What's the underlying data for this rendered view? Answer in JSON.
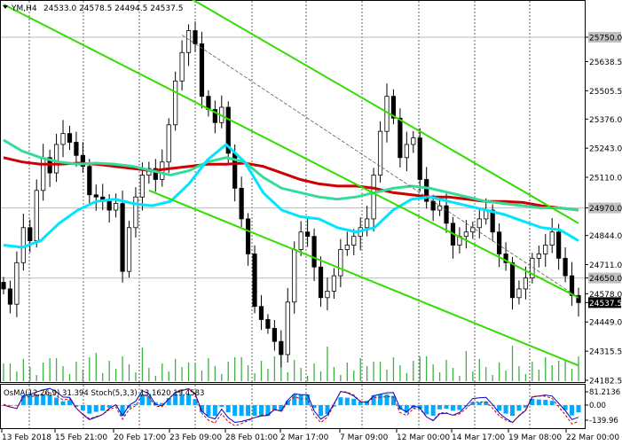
{
  "header": {
    "symbol": "YM,H4",
    "ohlc": "24533.0 24578.5 24494.5 24537.5"
  },
  "oscillator_header": "OsMA(12,26,9) 31.394  Stoch(5,3,3) 13.1620 19.4583",
  "chart_data": {
    "type": "candlestick",
    "title": "YM,H4",
    "y_ticks": [
      25750.0,
      25638.5,
      25505.5,
      25376.0,
      25243.0,
      25110.0,
      24970.0,
      24844.0,
      24711.0,
      24650.0,
      24578.0,
      24537.5,
      24449.0,
      24315.5,
      24182.5
    ],
    "highlighted_levels": [
      {
        "value": 25750.0,
        "label": "25750.0",
        "color": "#c0c0c0"
      },
      {
        "value": 24970.0,
        "label": "24970.0",
        "color": "#c0c0c0"
      },
      {
        "value": 24650.0,
        "label": "24650.0",
        "color": "#c0c0c0"
      },
      {
        "value": 24537.5,
        "label": "24537.5",
        "color": "#000000"
      }
    ],
    "x_labels": [
      "13 Feb 2018",
      "15 Feb 21:00",
      "20 Feb 17:00",
      "23 Feb 09:00",
      "28 Feb 01:00",
      "2 Mar 17:00",
      "7 Mar 09:00",
      "12 Mar 00:00",
      "14 Mar 17:00",
      "19 Mar 08:00",
      "22 Mar 00:00"
    ],
    "close_series": [
      24600,
      24530,
      24720,
      24880,
      24820,
      25050,
      25200,
      25130,
      25260,
      25310,
      25270,
      25210,
      25160,
      25030,
      25020,
      25000,
      24960,
      24990,
      24680,
      24880,
      25020,
      25120,
      25150,
      25100,
      25180,
      25350,
      25550,
      25680,
      25780,
      25720,
      25480,
      25420,
      25360,
      25430,
      25220,
      25060,
      24920,
      24760,
      24520,
      24460,
      24420,
      24360,
      24300,
      24540,
      24780,
      24860,
      24840,
      24700,
      24560,
      24590,
      24660,
      24780,
      24800,
      24840,
      24880,
      24920,
      25120,
      25320,
      25480,
      25380,
      25200,
      25260,
      25290,
      25100,
      25000,
      24960,
      24980,
      24900,
      24800,
      24840,
      24860,
      24880,
      24920,
      24960,
      24860,
      24760,
      24720,
      24560,
      24600,
      24650,
      24740,
      24760,
      24800,
      24860,
      24740,
      24660,
      24570,
      24537.5
    ],
    "series": [
      {
        "name": "",
        "color": "#cc0000",
        "values": [
          25200,
          25180,
          25170,
          25170,
          25175,
          25170,
          25160,
          25150,
          25140,
          25150,
          25160,
          25170,
          25170,
          25175,
          25160,
          25130,
          25100,
          25080,
          25070,
          25070,
          25060,
          25040,
          25030,
          25020,
          25020,
          25010,
          25000,
          25000,
          24995,
          24980,
          24970,
          24960
        ]
      },
      {
        "name": "",
        "color": "#33dd99",
        "values": [
          25280,
          25230,
          25200,
          25180,
          25170,
          25175,
          25170,
          25160,
          25140,
          25120,
          25140,
          25180,
          25200,
          25180,
          25110,
          25060,
          25040,
          25020,
          25010,
          25020,
          25040,
          25060,
          25070,
          25060,
          25040,
          25020,
          25000,
          24990,
          24980,
          24970,
          24970,
          24960
        ]
      },
      {
        "name": "",
        "color": "#00e5ff",
        "values": [
          24800,
          24790,
          24820,
          24900,
          24960,
          25000,
          25010,
          24990,
          24980,
          25000,
          25080,
          25190,
          25260,
          25180,
          25040,
          24960,
          24930,
          24920,
          24880,
          24860,
          24880,
          24960,
          25010,
          25020,
          25000,
          24980,
          24960,
          24940,
          24910,
          24880,
          24870,
          24820
        ]
      }
    ],
    "channel_lines": [
      {
        "color": "#33dd00",
        "from": [
          0,
          25900
        ],
        "to": [
          87,
          24560
        ]
      },
      {
        "color": "#33dd00",
        "from": [
          27,
          25950
        ],
        "to": [
          87,
          24900
        ]
      },
      {
        "color": "#33dd00",
        "from": [
          22,
          25050
        ],
        "to": [
          87,
          24250
        ]
      },
      {
        "color": "#3c6e3c",
        "from": [
          27,
          25760
        ],
        "to": [
          87,
          24560
        ]
      }
    ],
    "volume_style": "green bars",
    "oscillator": {
      "y_ticks": [
        "81.2136",
        "0.00",
        "-139.96"
      ],
      "osma_color": "#00aaff",
      "stoch_main_color": "#0000cc",
      "stoch_signal_color": "#cc0000"
    },
    "grid": true
  }
}
